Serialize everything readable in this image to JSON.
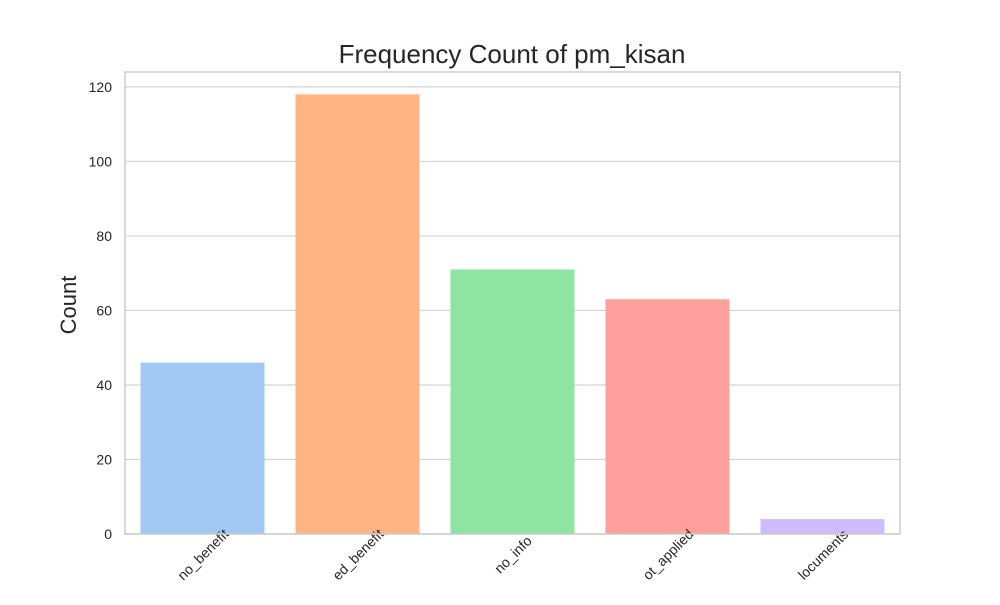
{
  "chart_data": {
    "type": "bar",
    "title": "Frequency Count of pm_kisan",
    "xlabel": "",
    "ylabel": "Count",
    "categories": [
      "no_benefit",
      "received_benefit",
      "no_info",
      "not_applied",
      "no_documents"
    ],
    "visible_tick_text": [
      "no_benefit",
      "ed_benefit",
      "no_info",
      "ot_applied",
      "locuments"
    ],
    "values": [
      46,
      118,
      71,
      63,
      4
    ],
    "colors": [
      "#a1c9f4",
      "#ffb482",
      "#8de5a1",
      "#ff9f9b",
      "#d0bbff"
    ],
    "yticks": [
      0,
      20,
      40,
      60,
      80,
      100,
      120
    ],
    "ylim": [
      0,
      124
    ],
    "grid": true,
    "legend": "none"
  }
}
